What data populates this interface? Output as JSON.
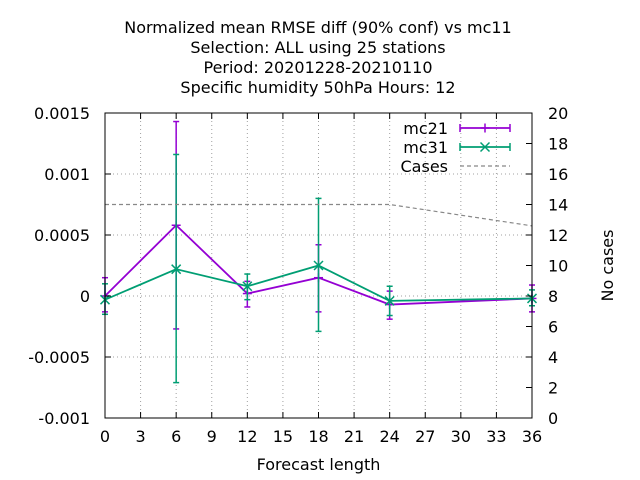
{
  "chart_data": {
    "type": "line",
    "title_lines": [
      "Normalized mean RMSE diff (90% conf) vs mc11",
      "Selection: ALL using    25 stations",
      "Period: 20201228-20210110",
      "Specific humidity 50hPa   Hours:  12"
    ],
    "xlabel": "Forecast length",
    "ylabel": "",
    "y2label": "No cases",
    "xlim": [
      0,
      36
    ],
    "ylim": [
      -0.001,
      0.0015
    ],
    "y2lim": [
      0,
      20
    ],
    "x_ticks": [
      "0",
      "3",
      "6",
      "9",
      "12",
      "15",
      "18",
      "21",
      "24",
      "27",
      "30",
      "33",
      "36"
    ],
    "y_ticks": [
      "-0.001",
      "-0.0005",
      "0",
      "0.0005",
      "0.001",
      "0.0015"
    ],
    "y2_ticks": [
      "0",
      "2",
      "4",
      "6",
      "8",
      "10",
      "12",
      "14",
      "16",
      "18",
      "20"
    ],
    "grid": true,
    "legend_position": "top-right",
    "series": [
      {
        "name": "mc21",
        "color": "#9400d3",
        "marker": "plus",
        "x": [
          0,
          6,
          12,
          18,
          24,
          36
        ],
        "values": [
          0.0,
          0.00058,
          2e-05,
          0.00015,
          -7e-05,
          -2e-05
        ],
        "err_low": [
          -0.00013,
          -0.00027,
          -9e-05,
          -0.00013,
          -0.00019,
          -0.00013
        ],
        "err_high": [
          0.00015,
          0.00143,
          0.00012,
          0.00042,
          4e-05,
          9e-05
        ]
      },
      {
        "name": "mc31",
        "color": "#009e73",
        "marker": "cross",
        "x": [
          0,
          6,
          12,
          18,
          24,
          36
        ],
        "values": [
          -3e-05,
          0.00022,
          8e-05,
          0.00025,
          -4e-05,
          -2e-05
        ],
        "err_low": [
          -0.00015,
          -0.00071,
          -3e-05,
          -0.00029,
          -0.00016,
          -8e-05
        ],
        "err_high": [
          0.0001,
          0.00116,
          0.00018,
          0.0008,
          8e-05,
          5e-05
        ]
      },
      {
        "name": "Cases",
        "color": "#888888",
        "axis": "right",
        "style": "dashed",
        "x": [
          0,
          6,
          12,
          18,
          24,
          36
        ],
        "values": [
          14,
          14,
          14,
          14,
          14,
          12.6
        ]
      }
    ]
  }
}
